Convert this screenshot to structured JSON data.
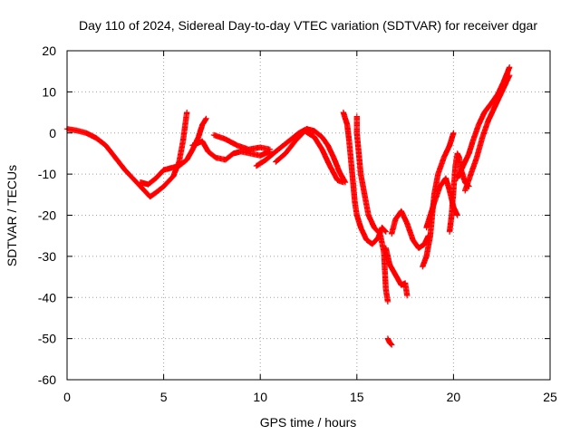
{
  "chart_data": {
    "type": "scatter",
    "title": "Day 110 of 2024, Sidereal Day-to-day VTEC variation (SDTVAR) for receiver dgar",
    "xlabel": "GPS time / hours",
    "ylabel": "SDTVAR / TECUs",
    "xlim": [
      0,
      25
    ],
    "ylim": [
      -60,
      20
    ],
    "x_ticks": [
      "0",
      "5",
      "10",
      "15",
      "20",
      "25"
    ],
    "y_ticks": [
      "20",
      "10",
      "0",
      "-10",
      "-20",
      "-30",
      "-40",
      "-50",
      "-60"
    ],
    "grid": true,
    "marker": "+",
    "color": "#ff0000",
    "series": [
      {
        "name": "SDTVAR",
        "segments": [
          [
            [
              0.0,
              1.0
            ],
            [
              0.5,
              0.6
            ],
            [
              1.0,
              0.0
            ],
            [
              1.5,
              -1.2
            ],
            [
              2.0,
              -3.0
            ],
            [
              2.5,
              -6.0
            ],
            [
              3.0,
              -9.0
            ],
            [
              3.5,
              -11.5
            ],
            [
              4.0,
              -14.0
            ],
            [
              4.3,
              -15.5
            ]
          ],
          [
            [
              4.3,
              -15.5
            ],
            [
              4.6,
              -14.5
            ],
            [
              5.0,
              -13.0
            ],
            [
              5.5,
              -10.5
            ],
            [
              5.8,
              -7.0
            ],
            [
              6.0,
              -2.0
            ],
            [
              6.2,
              5.0
            ]
          ],
          [
            [
              3.8,
              -12.0
            ],
            [
              4.2,
              -12.5
            ],
            [
              4.6,
              -11.0
            ],
            [
              5.0,
              -9.0
            ],
            [
              5.4,
              -8.5
            ],
            [
              5.8,
              -8.0
            ],
            [
              6.2,
              -6.5
            ],
            [
              6.5,
              -4.0
            ],
            [
              6.8,
              -1.0
            ],
            [
              7.0,
              2.0
            ],
            [
              7.2,
              3.5
            ]
          ],
          [
            [
              6.5,
              -3.0
            ],
            [
              7.0,
              -2.0
            ],
            [
              7.3,
              -4.5
            ],
            [
              7.7,
              -6.0
            ],
            [
              8.2,
              -6.5
            ],
            [
              8.6,
              -5.0
            ],
            [
              9.0,
              -4.5
            ],
            [
              9.5,
              -5.0
            ],
            [
              10.0,
              -5.5
            ],
            [
              10.5,
              -4.5
            ]
          ],
          [
            [
              7.6,
              -0.5
            ],
            [
              8.2,
              -1.5
            ],
            [
              8.8,
              -3.0
            ],
            [
              9.4,
              -4.0
            ],
            [
              10.0,
              -3.5
            ],
            [
              10.5,
              -4.0
            ]
          ],
          [
            [
              9.8,
              -8.0
            ],
            [
              10.3,
              -6.5
            ],
            [
              10.8,
              -4.5
            ],
            [
              11.2,
              -3.0
            ],
            [
              11.6,
              -1.5
            ],
            [
              12.0,
              0.0
            ],
            [
              12.4,
              1.0
            ],
            [
              12.8,
              0.5
            ],
            [
              13.2,
              -1.0
            ],
            [
              13.5,
              -3.0
            ],
            [
              13.8,
              -6.0
            ],
            [
              14.1,
              -9.5
            ],
            [
              14.4,
              -12.0
            ]
          ],
          [
            [
              10.8,
              -7.0
            ],
            [
              11.3,
              -5.0
            ],
            [
              11.8,
              -2.0
            ],
            [
              12.3,
              0.5
            ],
            [
              12.8,
              -1.0
            ],
            [
              13.2,
              -4.0
            ],
            [
              13.6,
              -8.0
            ],
            [
              14.0,
              -11.5
            ],
            [
              14.3,
              -12.0
            ]
          ],
          [
            [
              14.3,
              5.0
            ],
            [
              14.5,
              2.0
            ],
            [
              14.6,
              -2.0
            ],
            [
              14.7,
              -7.0
            ],
            [
              14.8,
              -12.0
            ],
            [
              14.9,
              -17.0
            ],
            [
              15.0,
              -20.0
            ],
            [
              15.2,
              -23.0
            ],
            [
              15.5,
              -26.0
            ],
            [
              15.8,
              -27.0
            ],
            [
              16.1,
              -25.5
            ],
            [
              16.3,
              -23.0
            ],
            [
              16.5,
              -24.0
            ]
          ],
          [
            [
              15.0,
              4.0
            ],
            [
              15.0,
              0.0
            ],
            [
              15.1,
              -5.0
            ],
            [
              15.2,
              -10.0
            ],
            [
              15.4,
              -15.0
            ],
            [
              15.6,
              -20.0
            ],
            [
              15.9,
              -23.0
            ],
            [
              16.2,
              -24.5
            ],
            [
              16.4,
              -29.0
            ],
            [
              16.5,
              -38.0
            ],
            [
              16.6,
              -41.0
            ]
          ],
          [
            [
              16.6,
              -50.0
            ],
            [
              16.7,
              -51.0
            ],
            [
              16.8,
              -51.5
            ]
          ],
          [
            [
              16.5,
              -28.0
            ],
            [
              16.7,
              -32.0
            ],
            [
              17.0,
              -34.5
            ],
            [
              17.3,
              -37.0
            ],
            [
              17.5,
              -36.5
            ],
            [
              17.6,
              -39.5
            ]
          ],
          [
            [
              16.8,
              -24.5
            ],
            [
              17.0,
              -21.0
            ],
            [
              17.3,
              -19.0
            ],
            [
              17.6,
              -22.0
            ],
            [
              17.9,
              -26.0
            ],
            [
              18.2,
              -28.0
            ],
            [
              18.5,
              -27.0
            ],
            [
              18.7,
              -25.0
            ]
          ],
          [
            [
              18.4,
              -32.5
            ],
            [
              18.6,
              -30.0
            ],
            [
              18.8,
              -25.0
            ],
            [
              18.9,
              -20.0
            ],
            [
              19.0,
              -15.0
            ],
            [
              19.2,
              -10.0
            ],
            [
              19.5,
              -6.0
            ],
            [
              19.8,
              -3.0
            ],
            [
              20.0,
              0.0
            ]
          ],
          [
            [
              18.6,
              -23.0
            ],
            [
              18.8,
              -20.0
            ],
            [
              19.0,
              -17.0
            ],
            [
              19.3,
              -13.0
            ],
            [
              19.6,
              -11.0
            ],
            [
              19.8,
              -14.0
            ],
            [
              20.0,
              -18.0
            ],
            [
              20.2,
              -20.0
            ]
          ],
          [
            [
              19.8,
              -24.0
            ],
            [
              19.9,
              -20.0
            ],
            [
              20.0,
              -14.0
            ],
            [
              20.1,
              -8.0
            ],
            [
              20.2,
              -5.0
            ],
            [
              20.3,
              -6.0
            ],
            [
              20.4,
              -9.0
            ],
            [
              20.6,
              -12.0
            ],
            [
              20.8,
              -13.0
            ]
          ],
          [
            [
              20.2,
              -11.0
            ],
            [
              20.5,
              -8.0
            ],
            [
              20.8,
              -5.0
            ],
            [
              21.0,
              -2.0
            ],
            [
              21.3,
              2.0
            ],
            [
              21.6,
              5.0
            ],
            [
              22.0,
              7.5
            ],
            [
              22.3,
              9.5
            ],
            [
              22.6,
              12.5
            ],
            [
              22.9,
              16.0
            ]
          ],
          [
            [
              20.6,
              -14.0
            ],
            [
              20.9,
              -10.0
            ],
            [
              21.2,
              -6.0
            ],
            [
              21.5,
              -1.0
            ],
            [
              21.8,
              3.0
            ],
            [
              22.2,
              7.0
            ],
            [
              22.6,
              11.0
            ],
            [
              22.9,
              14.0
            ]
          ]
        ]
      }
    ]
  }
}
